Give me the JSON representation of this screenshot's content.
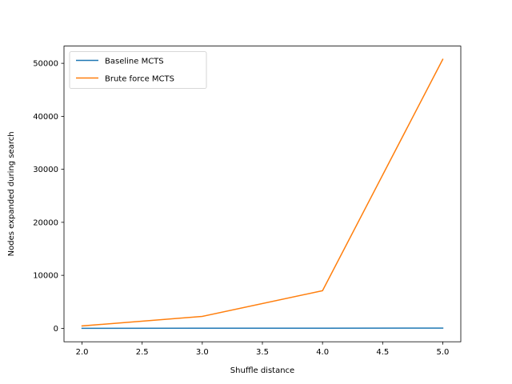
{
  "chart_data": {
    "type": "line",
    "title": "",
    "xlabel": "Shuffle distance",
    "ylabel": "Nodes expanded during search",
    "x": [
      2.0,
      3.0,
      4.0,
      5.0
    ],
    "xlim": [
      1.85,
      5.15
    ],
    "ylim": [
      -2535,
      53250
    ],
    "xticks": [
      2.0,
      2.5,
      3.0,
      3.5,
      4.0,
      4.5,
      5.0
    ],
    "xtick_labels": [
      "2.0",
      "2.5",
      "3.0",
      "3.5",
      "4.0",
      "4.5",
      "5.0"
    ],
    "yticks": [
      0,
      10000,
      20000,
      30000,
      40000,
      50000
    ],
    "ytick_labels": [
      "0",
      "10000",
      "20000",
      "30000",
      "40000",
      "50000"
    ],
    "grid": false,
    "legend_position": "top-left",
    "series": [
      {
        "name": "Baseline MCTS",
        "color": "#1f77b4",
        "values": [
          10,
          20,
          30,
          40
        ]
      },
      {
        "name": "Brute force MCTS",
        "color": "#ff7f0e",
        "values": [
          450,
          2250,
          7100,
          50750
        ]
      }
    ]
  }
}
